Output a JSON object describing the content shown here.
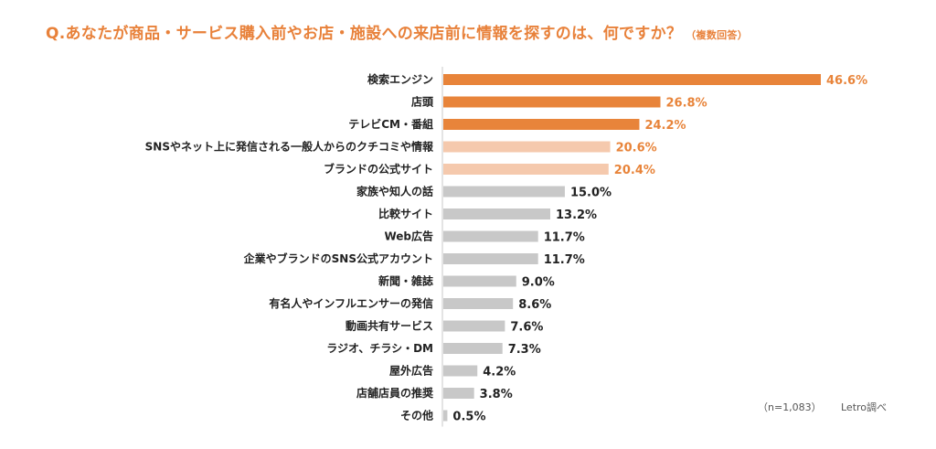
{
  "title": {
    "question": "Q.あなたが商品・サービス購入前やお店・施設への来店前に情報を探すのは、何ですか？",
    "note": "（複数回答）"
  },
  "footer": {
    "sample": "（n=1,083）",
    "source": "Letro調べ"
  },
  "colors": {
    "title": "#E8813A",
    "accent": "#E8843A",
    "accent_light": "#F5C9AD",
    "neutral": "#C8C8C8",
    "label": "#222222",
    "axis": "#C8C8C8"
  },
  "chart_data": {
    "type": "bar",
    "orientation": "horizontal",
    "categories": [
      "検索エンジン",
      "店頭",
      "テレビCM・番組",
      "SNSやネット上に発信される一般人からのクチコミや情報",
      "ブランドの公式サイト",
      "家族や知人の話",
      "比較サイト",
      "Web広告",
      "企業やブランドのSNS公式アカウント",
      "新聞・雑誌",
      "有名人やインフルエンサーの発信",
      "動画共有サービス",
      "ラジオ、チラシ・DM",
      "屋外広告",
      "店舗店員の推奨",
      "その他"
    ],
    "values": [
      46.6,
      26.8,
      24.2,
      20.6,
      20.4,
      15.0,
      13.2,
      11.7,
      11.7,
      9.0,
      8.6,
      7.6,
      7.3,
      4.2,
      3.8,
      0.5
    ],
    "value_labels": [
      "46.6%",
      "26.8%",
      "24.2%",
      "20.6%",
      "20.4%",
      "15.0%",
      "13.2%",
      "11.7%",
      "11.7%",
      "9.0%",
      "8.6%",
      "7.6%",
      "7.3%",
      "4.2%",
      "3.8%",
      "0.5%"
    ],
    "bar_color_group": [
      "accent",
      "accent",
      "accent",
      "accent_light",
      "accent_light",
      "neutral",
      "neutral",
      "neutral",
      "neutral",
      "neutral",
      "neutral",
      "neutral",
      "neutral",
      "neutral",
      "neutral",
      "neutral"
    ],
    "xlim": [
      0,
      48
    ],
    "unit": "%",
    "grid": false,
    "legend": "none"
  }
}
